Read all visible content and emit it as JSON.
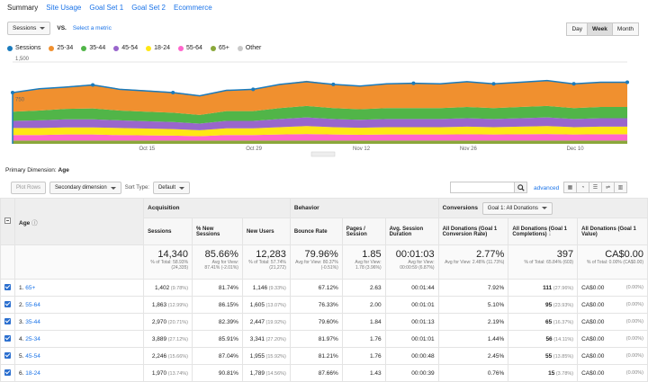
{
  "tabs": [
    "Summary",
    "Site Usage",
    "Goal Set 1",
    "Goal Set 2",
    "Ecommerce"
  ],
  "metric_select": "Sessions",
  "vs_label": "VS.",
  "select_metric_link": "Select a metric",
  "period_buttons": [
    "Day",
    "Week",
    "Month"
  ],
  "period_selected": "Week",
  "legend": [
    {
      "name": "Sessions",
      "color": "#1a7bbd"
    },
    {
      "name": "25-34",
      "color": "#f0902f"
    },
    {
      "name": "35-44",
      "color": "#51b548"
    },
    {
      "name": "45-54",
      "color": "#9966cc"
    },
    {
      "name": "18-24",
      "color": "#ffe714"
    },
    {
      "name": "55-64",
      "color": "#ff66cc"
    },
    {
      "name": "65+",
      "color": "#8aa83a"
    },
    {
      "name": "Other",
      "color": "#c9c9c9"
    }
  ],
  "chart_data": {
    "type": "area",
    "stacked": true,
    "y_tick_labels": [
      "1,500",
      "750"
    ],
    "ylim": [
      0,
      1500
    ],
    "x_tick_labels": [
      "Oct 15",
      "Oct 29",
      "Nov 12",
      "Nov 26",
      "Dec 10"
    ],
    "x": [
      "w1",
      "w2",
      "w3",
      "w4",
      "w5",
      "w6",
      "w7",
      "w8",
      "w9",
      "w10",
      "w11",
      "w12",
      "w13",
      "w14",
      "w15",
      "w16",
      "w17",
      "w18",
      "w19",
      "w20",
      "w21",
      "w22",
      "w23",
      "w24"
    ],
    "series": [
      {
        "name": "65+",
        "values": [
          60,
          60,
          60,
          60,
          60,
          60,
          60,
          60,
          60,
          60,
          60,
          60,
          60,
          60,
          60,
          60,
          60,
          60,
          60,
          60,
          60,
          60,
          60,
          60
        ]
      },
      {
        "name": "55-64",
        "values": [
          100,
          100,
          110,
          110,
          100,
          95,
          90,
          80,
          100,
          100,
          110,
          120,
          110,
          105,
          110,
          110,
          110,
          115,
          110,
          115,
          120,
          110,
          115,
          115
        ]
      },
      {
        "name": "18-24",
        "values": [
          130,
          130,
          130,
          130,
          130,
          125,
          120,
          110,
          125,
          125,
          135,
          145,
          135,
          130,
          135,
          135,
          135,
          140,
          135,
          140,
          145,
          135,
          140,
          140
        ]
      },
      {
        "name": "45-54",
        "values": [
          130,
          140,
          150,
          150,
          140,
          135,
          130,
          120,
          135,
          135,
          150,
          160,
          150,
          145,
          150,
          150,
          150,
          155,
          150,
          155,
          160,
          150,
          155,
          155
        ]
      },
      {
        "name": "35-44",
        "values": [
          170,
          180,
          190,
          200,
          180,
          175,
          170,
          160,
          180,
          180,
          200,
          210,
          200,
          195,
          200,
          200,
          200,
          205,
          200,
          205,
          210,
          200,
          205,
          205
        ]
      },
      {
        "name": "25-34",
        "values": [
          350,
          390,
          410,
          440,
          400,
          390,
          380,
          360,
          390,
          400,
          440,
          460,
          440,
          430,
          450,
          460,
          450,
          470,
          450,
          460,
          470,
          450,
          460,
          460
        ]
      }
    ],
    "sessions": [
      940,
      1010,
      1040,
      1080,
      1000,
      970,
      940,
      880,
      980,
      1000,
      1090,
      1140,
      1090,
      1060,
      1100,
      1110,
      1100,
      1140,
      1100,
      1130,
      1160,
      1100,
      1130,
      1130
    ]
  },
  "primary_dimension_label": "Primary Dimension:",
  "primary_dimension_value": "Age",
  "plot_rows_button": "Plot Rows",
  "secondary_dimension": "Secondary dimension",
  "sort_type_label": "Sort Type:",
  "sort_type_value": "Default",
  "advanced_link": "advanced",
  "table": {
    "group_headers": {
      "acquisition": "Acquisition",
      "behavior": "Behavior",
      "conversions": "Conversions",
      "goal_select": "Goal 1: All Donations"
    },
    "col_age": "Age",
    "columns": [
      "Sessions",
      "% New Sessions",
      "New Users",
      "Bounce Rate",
      "Pages / Session",
      "Avg. Session Duration",
      "All Donations (Goal 1 Conversion Rate)",
      "All Donations (Goal 1 Completions)",
      "All Donations (Goal 1 Value)"
    ],
    "totals": [
      {
        "value": "14,340",
        "sub": "% of Total: 58.93% (24,335)"
      },
      {
        "value": "85.66%",
        "sub": "Avg for View: 87.41% (-2.01%)"
      },
      {
        "value": "12,283",
        "sub": "% of Total: 57.74% (21,272)"
      },
      {
        "value": "79.96%",
        "sub": "Avg for View: 80.37% (-0.51%)"
      },
      {
        "value": "1.85",
        "sub": "Avg for View: 1.78 (3.96%)"
      },
      {
        "value": "00:01:03",
        "sub": "Avg for View: 00:00:59 (6.87%)"
      },
      {
        "value": "2.77%",
        "sub": "Avg for View: 2.48% (11.73%)"
      },
      {
        "value": "397",
        "sub": "% of Total: 65.84% (603)"
      },
      {
        "value": "CA$0.00",
        "sub": "% of Total: 0.00% (CA$0.00)"
      }
    ],
    "rows": [
      {
        "n": "1.",
        "age": "65+",
        "sessions": "1,402",
        "sessions_pct": "(9.78%)",
        "new_sess": "81.74%",
        "new_users": "1,146",
        "new_users_pct": "(9.33%)",
        "bounce": "67.12%",
        "pages": "2.63",
        "dur": "00:01:44",
        "conv": "7.92%",
        "comp": "111",
        "comp_pct": "(27.96%)",
        "val": "CA$0.00",
        "val_pct": "(0.00%)"
      },
      {
        "n": "2.",
        "age": "55-64",
        "sessions": "1,863",
        "sessions_pct": "(12.99%)",
        "new_sess": "86.15%",
        "new_users": "1,605",
        "new_users_pct": "(13.07%)",
        "bounce": "76.33%",
        "pages": "2.00",
        "dur": "00:01:01",
        "conv": "5.10%",
        "comp": "95",
        "comp_pct": "(23.93%)",
        "val": "CA$0.00",
        "val_pct": "(0.00%)"
      },
      {
        "n": "3.",
        "age": "35-44",
        "sessions": "2,970",
        "sessions_pct": "(20.71%)",
        "new_sess": "82.39%",
        "new_users": "2,447",
        "new_users_pct": "(19.92%)",
        "bounce": "79.60%",
        "pages": "1.84",
        "dur": "00:01:13",
        "conv": "2.19%",
        "comp": "65",
        "comp_pct": "(16.37%)",
        "val": "CA$0.00",
        "val_pct": "(0.00%)"
      },
      {
        "n": "4.",
        "age": "25-34",
        "sessions": "3,889",
        "sessions_pct": "(27.12%)",
        "new_sess": "85.91%",
        "new_users": "3,341",
        "new_users_pct": "(27.20%)",
        "bounce": "81.97%",
        "pages": "1.76",
        "dur": "00:01:01",
        "conv": "1.44%",
        "comp": "56",
        "comp_pct": "(14.11%)",
        "val": "CA$0.00",
        "val_pct": "(0.00%)"
      },
      {
        "n": "5.",
        "age": "45-54",
        "sessions": "2,246",
        "sessions_pct": "(15.66%)",
        "new_sess": "87.04%",
        "new_users": "1,955",
        "new_users_pct": "(15.92%)",
        "bounce": "81.21%",
        "pages": "1.76",
        "dur": "00:00:48",
        "conv": "2.45%",
        "comp": "55",
        "comp_pct": "(13.85%)",
        "val": "CA$0.00",
        "val_pct": "(0.00%)"
      },
      {
        "n": "6.",
        "age": "18-24",
        "sessions": "1,970",
        "sessions_pct": "(13.74%)",
        "new_sess": "90.81%",
        "new_users": "1,789",
        "new_users_pct": "(14.56%)",
        "bounce": "87.66%",
        "pages": "1.43",
        "dur": "00:00:39",
        "conv": "0.76%",
        "comp": "15",
        "comp_pct": "(3.78%)",
        "val": "CA$0.00",
        "val_pct": "(0.00%)"
      }
    ]
  }
}
